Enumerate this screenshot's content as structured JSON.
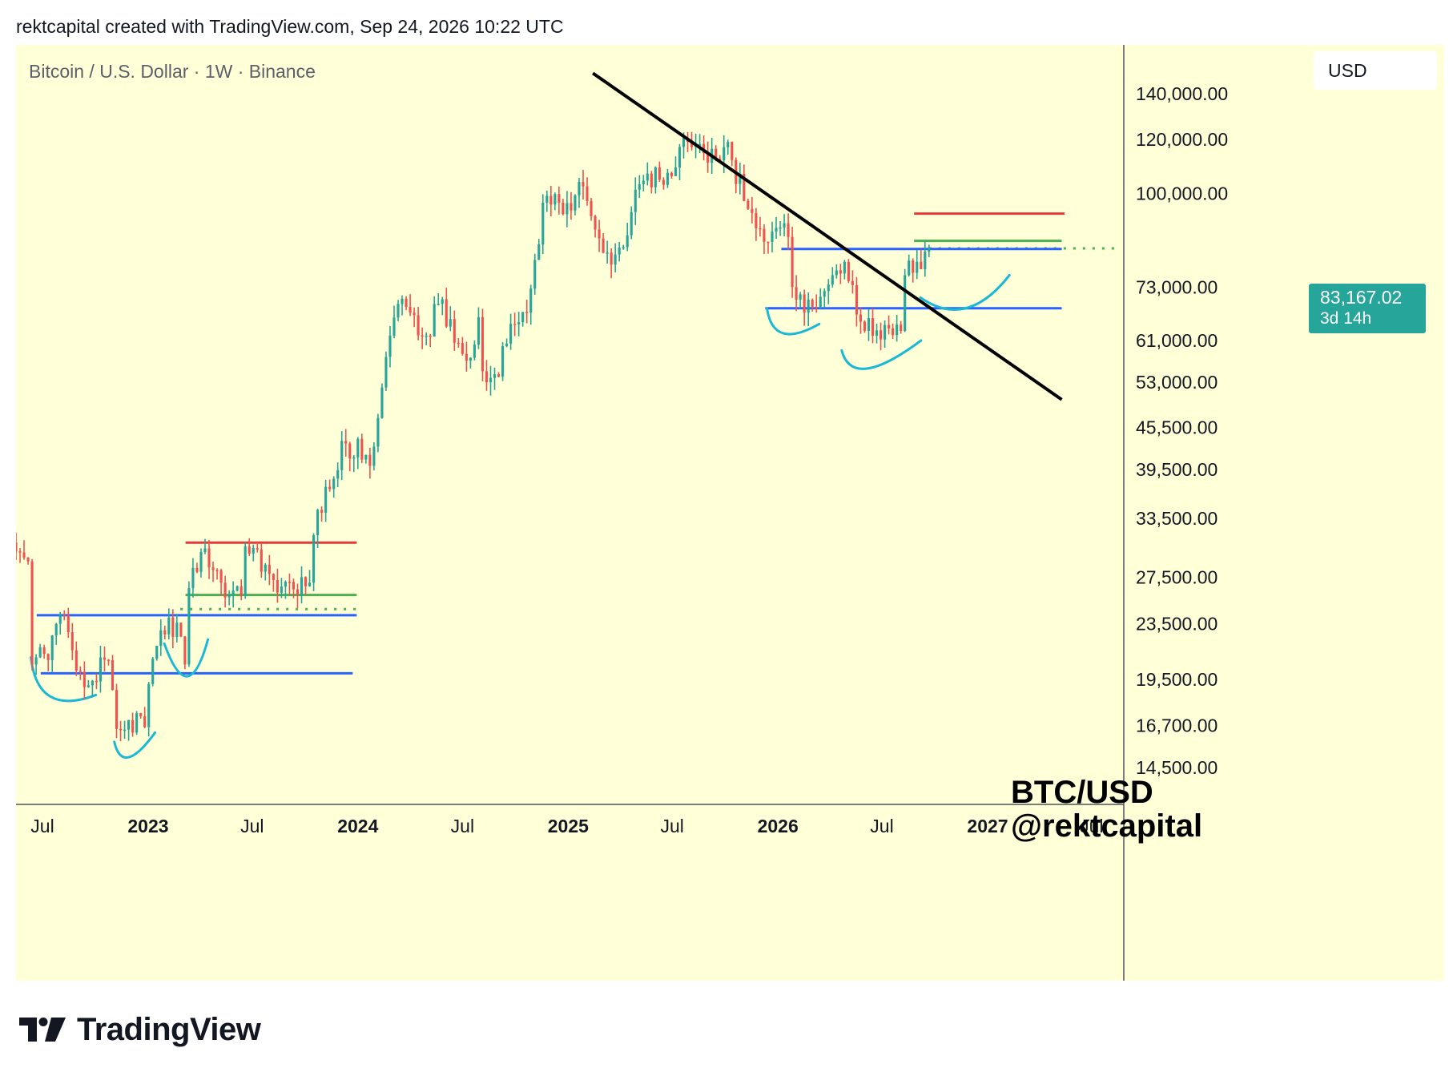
{
  "header": {
    "credit": "rektcapital created with TradingView.com, Sep 24, 2026 10:22 UTC"
  },
  "chart_data": {
    "type": "candlestick",
    "title": "Bitcoin / U.S. Dollar · 1W · Binance",
    "currency": "USD",
    "scale": "log",
    "ylim": [
      12800,
      165000
    ],
    "xlim": [
      "2022-05-16",
      "2027-08-26"
    ],
    "last_price": {
      "value": "83,167.02",
      "countdown": "3d 14h"
    },
    "watermark": [
      "BTC/USD",
      "@rektcapital"
    ],
    "y_ticks": [
      {
        "v": 140000,
        "label": "140,000.00"
      },
      {
        "v": 120000,
        "label": "120,000.00"
      },
      {
        "v": 100000,
        "label": "100,000.00"
      },
      {
        "v": 73000,
        "label": "73,000.00"
      },
      {
        "v": 61000,
        "label": "61,000.00"
      },
      {
        "v": 53000,
        "label": "53,000.00"
      },
      {
        "v": 45500,
        "label": "45,500.00"
      },
      {
        "v": 39500,
        "label": "39,500.00"
      },
      {
        "v": 33500,
        "label": "33,500.00"
      },
      {
        "v": 27500,
        "label": "27,500.00"
      },
      {
        "v": 23500,
        "label": "23,500.00"
      },
      {
        "v": 19500,
        "label": "19,500.00"
      },
      {
        "v": 16700,
        "label": "16,700.00"
      },
      {
        "v": 14500,
        "label": "14,500.00"
      }
    ],
    "x_ticks": [
      {
        "date": "2022-07-01",
        "label": "Jul",
        "bold": false
      },
      {
        "date": "2023-01-01",
        "label": "2023",
        "bold": true
      },
      {
        "date": "2023-07-01",
        "label": "Jul",
        "bold": false
      },
      {
        "date": "2024-01-01",
        "label": "2024",
        "bold": true
      },
      {
        "date": "2024-07-01",
        "label": "Jul",
        "bold": false
      },
      {
        "date": "2025-01-01",
        "label": "2025",
        "bold": true
      },
      {
        "date": "2025-07-01",
        "label": "Jul",
        "bold": false
      },
      {
        "date": "2026-01-01",
        "label": "2026",
        "bold": true
      },
      {
        "date": "2026-07-01",
        "label": "Jul",
        "bold": false
      },
      {
        "date": "2027-01-01",
        "label": "2027",
        "bold": true
      },
      {
        "date": "2027-07-01",
        "label": "Jul",
        "bold": false
      }
    ],
    "price_path": [
      [
        "2022-05-16",
        30000
      ],
      [
        "2022-06-06",
        29000
      ],
      [
        "2022-06-13",
        20500
      ],
      [
        "2022-06-20",
        21000
      ],
      [
        "2022-07-11",
        20800
      ],
      [
        "2022-07-25",
        23500
      ],
      [
        "2022-08-08",
        24200
      ],
      [
        "2022-08-22",
        21500
      ],
      [
        "2022-09-05",
        20000
      ],
      [
        "2022-09-26",
        19400
      ],
      [
        "2022-10-24",
        20800
      ],
      [
        "2022-11-07",
        16500
      ],
      [
        "2022-11-28",
        17000
      ],
      [
        "2022-12-26",
        16600
      ],
      [
        "2023-01-09",
        20900
      ],
      [
        "2023-01-23",
        23000
      ],
      [
        "2023-02-20",
        23600
      ],
      [
        "2023-03-06",
        20500
      ],
      [
        "2023-03-13",
        26500
      ],
      [
        "2023-03-27",
        28000
      ],
      [
        "2023-04-10",
        30300
      ],
      [
        "2023-05-08",
        27000
      ],
      [
        "2023-06-12",
        25800
      ],
      [
        "2023-06-19",
        30500
      ],
      [
        "2023-07-10",
        30200
      ],
      [
        "2023-08-14",
        26100
      ],
      [
        "2023-09-11",
        26400
      ],
      [
        "2023-10-09",
        27000
      ],
      [
        "2023-10-23",
        34500
      ],
      [
        "2023-11-13",
        37000
      ],
      [
        "2023-12-04",
        43500
      ],
      [
        "2024-01-15",
        41500
      ],
      [
        "2024-01-22",
        40000
      ],
      [
        "2024-02-05",
        47000
      ],
      [
        "2024-02-26",
        62000
      ],
      [
        "2024-03-11",
        69000
      ],
      [
        "2024-04-01",
        67000
      ],
      [
        "2024-04-29",
        62000
      ],
      [
        "2024-05-20",
        69000
      ],
      [
        "2024-06-24",
        60500
      ],
      [
        "2024-07-08",
        57000
      ],
      [
        "2024-07-29",
        66000
      ],
      [
        "2024-08-05",
        55000
      ],
      [
        "2024-09-02",
        54000
      ],
      [
        "2024-09-23",
        64500
      ],
      [
        "2024-10-21",
        67000
      ],
      [
        "2024-11-04",
        80000
      ],
      [
        "2024-11-18",
        97000
      ],
      [
        "2024-12-16",
        97000
      ],
      [
        "2025-01-06",
        94500
      ],
      [
        "2025-01-20",
        104000
      ],
      [
        "2025-02-24",
        86000
      ],
      [
        "2025-03-10",
        82000
      ],
      [
        "2025-04-07",
        83500
      ],
      [
        "2025-04-21",
        94000
      ],
      [
        "2025-05-19",
        107000
      ],
      [
        "2025-06-16",
        103000
      ],
      [
        "2025-07-14",
        117000
      ],
      [
        "2025-08-11",
        117500
      ],
      [
        "2025-09-01",
        111000
      ],
      [
        "2025-10-06",
        119000
      ],
      [
        "2025-10-13",
        112000
      ],
      [
        "2025-11-10",
        95000
      ],
      [
        "2025-11-24",
        89000
      ],
      [
        "2025-12-22",
        88000
      ],
      [
        "2026-01-12",
        90500
      ],
      [
        "2026-02-02",
        70000
      ],
      [
        "2026-02-16",
        67000
      ],
      [
        "2026-03-09",
        68000
      ],
      [
        "2026-04-06",
        76000
      ],
      [
        "2026-04-27",
        79500
      ],
      [
        "2026-05-11",
        73500
      ],
      [
        "2026-05-25",
        65000
      ],
      [
        "2026-06-15",
        62000
      ],
      [
        "2026-07-13",
        63500
      ],
      [
        "2026-08-03",
        63000
      ],
      [
        "2026-08-10",
        76000
      ],
      [
        "2026-08-31",
        79500
      ],
      [
        "2026-09-21",
        83167
      ]
    ],
    "levels": [
      {
        "name": "red-resistance-2023",
        "price": 30900,
        "from": "2023-03-07",
        "to": "2023-12-30",
        "color": "#e5393c",
        "style": "solid"
      },
      {
        "name": "green-level-2023",
        "price": 25900,
        "from": "2023-03-07",
        "to": "2023-12-30",
        "color": "#4caf50",
        "style": "solid"
      },
      {
        "name": "green-dotted-2023",
        "price": 24700,
        "from": "2023-02-26",
        "to": "2023-12-30",
        "color": "#4caf50",
        "style": "dotted"
      },
      {
        "name": "blue-level-2023",
        "price": 24200,
        "from": "2022-06-21",
        "to": "2023-12-30",
        "color": "#2962ff",
        "style": "solid"
      },
      {
        "name": "blue-level-2022",
        "price": 19900,
        "from": "2022-06-28",
        "to": "2023-12-23",
        "color": "#2962ff",
        "style": "solid"
      },
      {
        "name": "red-resistance-2026",
        "price": 93500,
        "from": "2026-08-26",
        "to": "2027-05-15",
        "color": "#e5393c",
        "style": "solid"
      },
      {
        "name": "green-level-2026",
        "price": 85300,
        "from": "2026-08-26",
        "to": "2027-05-10",
        "color": "#4caf50",
        "style": "solid"
      },
      {
        "name": "green-dotted-2026",
        "price": 83167,
        "from": "2026-09-21",
        "to": "2027-08-20",
        "color": "#4caf50",
        "style": "dotted"
      },
      {
        "name": "blue-resistance-2026",
        "price": 83000,
        "from": "2026-01-07",
        "to": "2027-05-10",
        "color": "#2962ff",
        "style": "solid"
      },
      {
        "name": "blue-support-2026",
        "price": 68000,
        "from": "2025-12-10",
        "to": "2027-05-10",
        "color": "#2962ff",
        "style": "solid"
      }
    ],
    "trendline": {
      "from": [
        "2025-02-13",
        150000
      ],
      "to": [
        "2027-05-10",
        50000
      ],
      "color": "#000000"
    },
    "curves": [
      {
        "name": "curve-2022-base",
        "color": "#19b9d5",
        "points": [
          [
            "2022-06-11",
            21000
          ],
          [
            "2022-07-15",
            18400
          ],
          [
            "2022-10-02",
            18500
          ]
        ]
      },
      {
        "name": "curve-2022-low",
        "color": "#19b9d5",
        "points": [
          [
            "2022-11-03",
            15800
          ],
          [
            "2022-11-28",
            15000
          ],
          [
            "2023-01-13",
            16300
          ]
        ]
      },
      {
        "name": "curve-2023-base",
        "color": "#19b9d5",
        "points": [
          [
            "2023-01-29",
            22000
          ],
          [
            "2023-03-10",
            19700
          ],
          [
            "2023-04-15",
            22300
          ]
        ]
      },
      {
        "name": "curve-2026-left",
        "color": "#19b9d5",
        "points": [
          [
            "2025-12-13",
            68000
          ],
          [
            "2026-01-10",
            62500
          ],
          [
            "2026-03-14",
            64500
          ]
        ]
      },
      {
        "name": "curve-2026-low",
        "color": "#19b9d5",
        "points": [
          [
            "2026-04-22",
            59000
          ],
          [
            "2026-06-05",
            55500
          ],
          [
            "2026-09-07",
            61000
          ]
        ]
      },
      {
        "name": "curve-2026-right",
        "color": "#19b9d5",
        "points": [
          [
            "2026-09-06",
            70500
          ],
          [
            "2026-11-24",
            68000
          ],
          [
            "2027-02-08",
            76000
          ]
        ]
      }
    ],
    "colors": {
      "up": "#26a69a",
      "down": "#ef5350",
      "background": "#ffffd8",
      "axis": "#50535e",
      "tick_text": "#131722"
    }
  },
  "footer": {
    "brand": "TradingView",
    "logo_icon": "tradingview-logo-icon"
  }
}
